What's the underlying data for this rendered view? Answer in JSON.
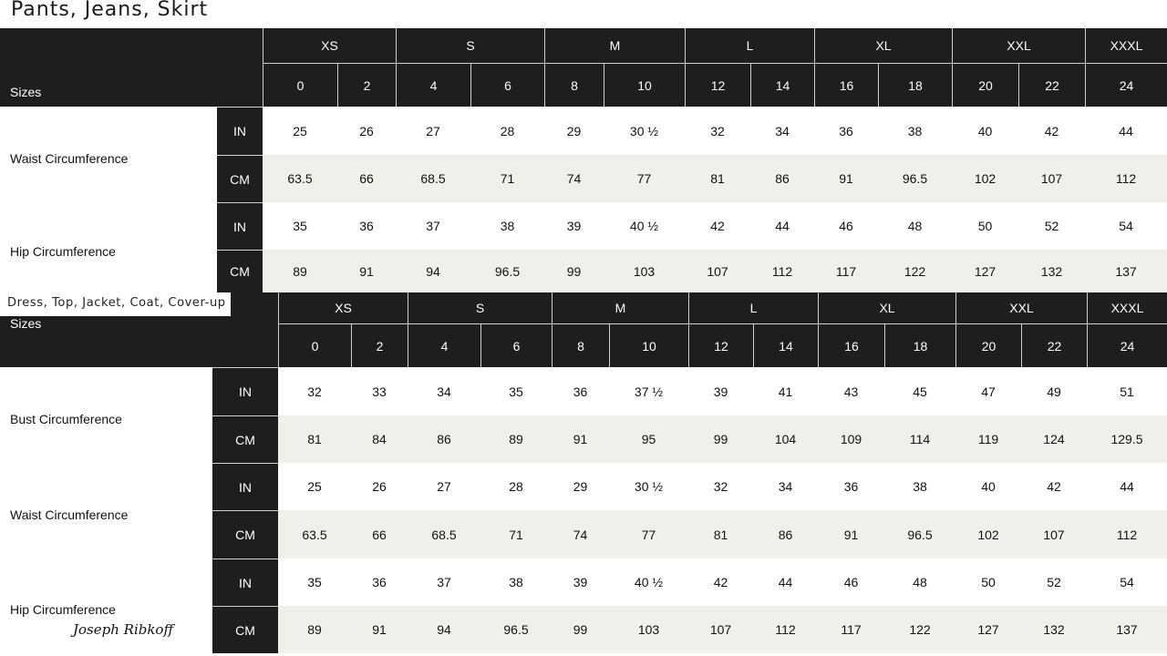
{
  "tables": [
    {
      "title": "Pants, Jeans, Skirt",
      "sizes_label": "Sizes",
      "groups": [
        {
          "label": "XS",
          "sizes": [
            "0",
            "2"
          ]
        },
        {
          "label": "S",
          "sizes": [
            "4",
            "6"
          ]
        },
        {
          "label": "M",
          "sizes": [
            "8",
            "10"
          ]
        },
        {
          "label": "L",
          "sizes": [
            "12",
            "14"
          ]
        },
        {
          "label": "XL",
          "sizes": [
            "16",
            "18"
          ]
        },
        {
          "label": "XXL",
          "sizes": [
            "20",
            "22"
          ]
        },
        {
          "label": "XXXL",
          "sizes": [
            "24"
          ]
        }
      ],
      "measurements": [
        {
          "label": "Waist Circumference",
          "rows": [
            {
              "unit": "IN",
              "values": [
                "25",
                "26",
                "27",
                "28",
                "29",
                "30 ½",
                "32",
                "34",
                "36",
                "38",
                "40",
                "42",
                "44"
              ]
            },
            {
              "unit": "CM",
              "values": [
                "63.5",
                "66",
                "68.5",
                "71",
                "74",
                "77",
                "81",
                "86",
                "91",
                "96.5",
                "102",
                "107",
                "112"
              ]
            }
          ]
        },
        {
          "label": "Hip Circumference",
          "rows": [
            {
              "unit": "IN",
              "values": [
                "35",
                "36",
                "37",
                "38",
                "39",
                "40 ½",
                "42",
                "44",
                "46",
                "48",
                "50",
                "52",
                "54"
              ]
            },
            {
              "unit": "CM",
              "values": [
                "89",
                "91",
                "94",
                "96.5",
                "99",
                "103",
                "107",
                "112",
                "117",
                "122",
                "127",
                "132",
                "137"
              ]
            }
          ]
        }
      ]
    },
    {
      "title": "Dress, Top, Jacket, Coat, Cover-up",
      "sizes_label": "Sizes",
      "groups": [
        {
          "label": "XS",
          "sizes": [
            "0",
            "2"
          ]
        },
        {
          "label": "S",
          "sizes": [
            "4",
            "6"
          ]
        },
        {
          "label": "M",
          "sizes": [
            "8",
            "10"
          ]
        },
        {
          "label": "L",
          "sizes": [
            "12",
            "14"
          ]
        },
        {
          "label": "XL",
          "sizes": [
            "16",
            "18"
          ]
        },
        {
          "label": "XXL",
          "sizes": [
            "20",
            "22"
          ]
        },
        {
          "label": "XXXL",
          "sizes": [
            "24"
          ]
        }
      ],
      "measurements": [
        {
          "label": "Bust Circumference",
          "rows": [
            {
              "unit": "IN",
              "values": [
                "32",
                "33",
                "34",
                "35",
                "36",
                "37 ½",
                "39",
                "41",
                "43",
                "45",
                "47",
                "49",
                "51"
              ]
            },
            {
              "unit": "CM",
              "values": [
                "81",
                "84",
                "86",
                "89",
                "91",
                "95",
                "99",
                "104",
                "109",
                "114",
                "119",
                "124",
                "129.5"
              ]
            }
          ]
        },
        {
          "label": "Waist Circumference",
          "rows": [
            {
              "unit": "IN",
              "values": [
                "25",
                "26",
                "27",
                "28",
                "29",
                "30 ½",
                "32",
                "34",
                "36",
                "38",
                "40",
                "42",
                "44"
              ]
            },
            {
              "unit": "CM",
              "values": [
                "63.5",
                "66",
                "68.5",
                "71",
                "74",
                "77",
                "81",
                "86",
                "91",
                "96.5",
                "102",
                "107",
                "112"
              ]
            }
          ]
        },
        {
          "label": "Hip Circumference",
          "rows": [
            {
              "unit": "IN",
              "values": [
                "35",
                "36",
                "37",
                "38",
                "39",
                "40 ½",
                "42",
                "44",
                "46",
                "48",
                "50",
                "52",
                "54"
              ]
            },
            {
              "unit": "CM",
              "values": [
                "89",
                "91",
                "94",
                "96.5",
                "99",
                "103",
                "107",
                "112",
                "117",
                "122",
                "127",
                "132",
                "137"
              ]
            }
          ]
        }
      ]
    }
  ],
  "brand_signature": "Joseph Ribkoff"
}
